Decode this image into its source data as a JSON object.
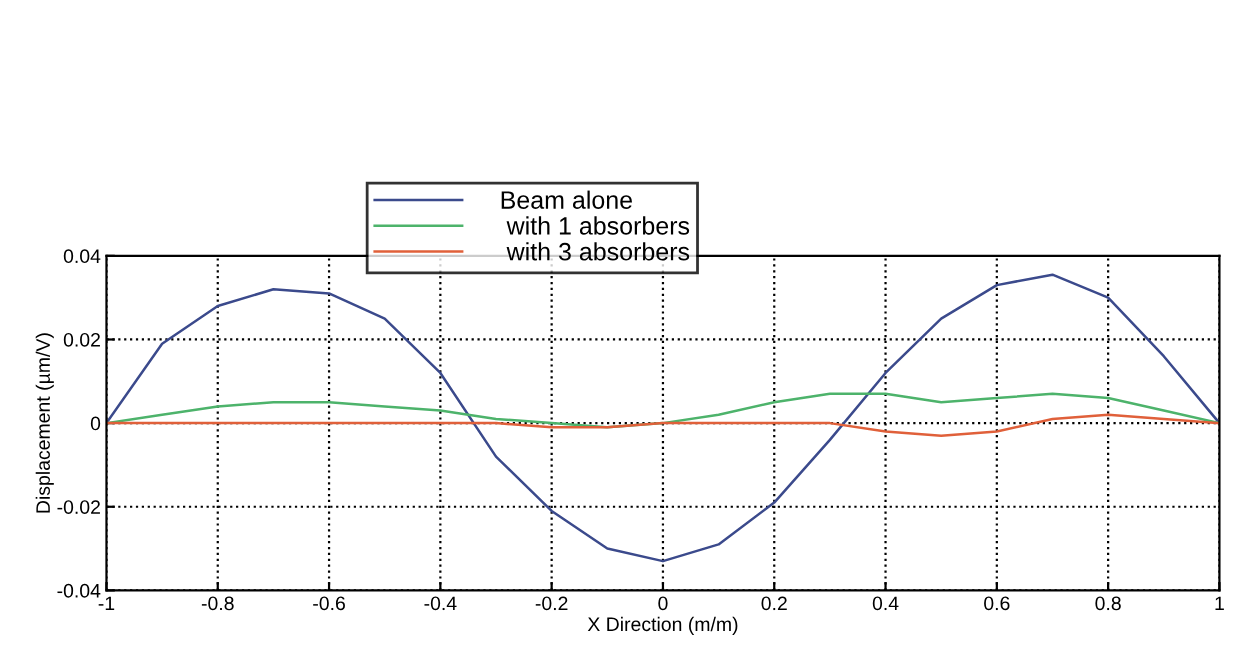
{
  "chart_data": {
    "type": "line",
    "xlabel": "X Direction (m/m)",
    "ylabel": "Displacement (µm/V)",
    "xlim": [
      -1,
      1
    ],
    "ylim": [
      -0.04,
      0.04
    ],
    "xticks": [
      -1,
      -0.8,
      -0.6,
      -0.4,
      -0.2,
      0,
      0.2,
      0.4,
      0.6,
      0.8,
      1
    ],
    "yticks": [
      -0.04,
      -0.02,
      0,
      0.02,
      0.04
    ],
    "grid": true,
    "legend": "top",
    "marker": "none",
    "line_style": "solid",
    "x": [
      -1,
      -0.9,
      -0.8,
      -0.7,
      -0.6,
      -0.5,
      -0.4,
      -0.3,
      -0.2,
      -0.1,
      0,
      0.1,
      0.2,
      0.3,
      0.4,
      0.5,
      0.6,
      0.7,
      0.8,
      0.9,
      1
    ],
    "series": [
      {
        "name": "Beam alone",
        "color": "#3b4a8c",
        "values": [
          0,
          0.019,
          0.028,
          0.032,
          0.031,
          0.025,
          0.012,
          -0.008,
          -0.021,
          -0.03,
          -0.033,
          -0.029,
          -0.019,
          -0.004,
          0.012,
          0.025,
          0.033,
          0.0355,
          0.03,
          0.016,
          0
        ]
      },
      {
        "name": " with 1 absorbers",
        "color": "#4db36b",
        "values": [
          0,
          0.002,
          0.004,
          0.005,
          0.005,
          0.004,
          0.003,
          0.001,
          0,
          -0.001,
          0,
          0.002,
          0.005,
          0.007,
          0.007,
          0.005,
          0.006,
          0.007,
          0.006,
          0.003,
          0
        ]
      },
      {
        "name": " with 3 absorbers",
        "color": "#e0603a",
        "values": [
          0,
          0,
          0,
          0,
          0,
          0,
          0,
          0,
          -0.001,
          -0.001,
          0,
          0,
          0,
          0,
          -0.002,
          -0.003,
          -0.002,
          0.001,
          0.002,
          0.001,
          0
        ]
      }
    ]
  }
}
